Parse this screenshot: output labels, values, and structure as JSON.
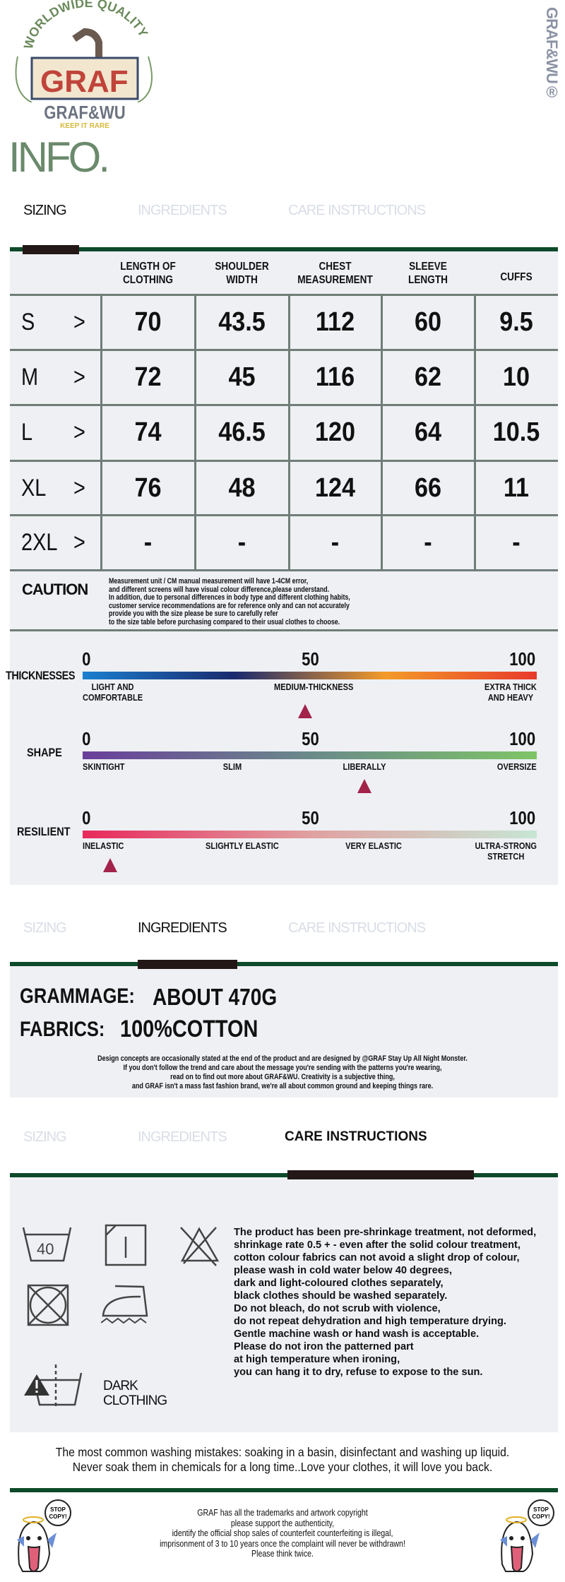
{
  "brand": {
    "logo_arc": "WORLDWIDE QUALITY",
    "logo_box": "GRAF",
    "logo_name": "GRAF&WU",
    "logo_tag": "KEEP IT RARE",
    "side_mark": "GRAF&WU®"
  },
  "page_title": "INFO.",
  "tabs": [
    "SIZING",
    "INGREDIENTS",
    "CARE INSTRUCTIONS"
  ],
  "sizing": {
    "headers": [
      "LENGTH OF\nCLOTHING",
      "SHOULDER\nWIDTH",
      "CHEST\nMEASUREMENT",
      "SLEEVE\nLENGTH",
      "CUFFS"
    ],
    "rows": [
      {
        "size": "S",
        "values": [
          "70",
          "43.5",
          "112",
          "60",
          "9.5"
        ]
      },
      {
        "size": "M",
        "values": [
          "72",
          "45",
          "116",
          "62",
          "10"
        ]
      },
      {
        "size": "L",
        "values": [
          "74",
          "46.5",
          "120",
          "64",
          "10.5"
        ]
      },
      {
        "size": "XL",
        "values": [
          "76",
          "48",
          "124",
          "66",
          "11"
        ]
      },
      {
        "size": "2XL",
        "values": [
          "-",
          "-",
          "-",
          "-",
          "-"
        ]
      }
    ],
    "arrow": ">",
    "caution_title": "CAUTION",
    "caution_lines": [
      "Measurement unit / CM manual measurement will have 1-4CM error,",
      "and different screens will have visual colour difference,please understand.",
      "In addition, due to personal differences in body type and different clothing habits,",
      "customer service recommendations are for reference only and can not accurately",
      "provide you with the size please be sure to carefully refer",
      "to the size table before purchasing compared to their usual clothes to choose."
    ]
  },
  "scales": [
    {
      "name": "THICKNESSES",
      "ticks": [
        "0",
        "50",
        "100"
      ],
      "value": 49,
      "gradient": [
        "#1a7fcf",
        "#1a2a6e",
        "#f39a2a",
        "#e8392b"
      ],
      "labels": [
        "LIGHT AND\nCOMFORTABLE",
        "MEDIUM-THICKNESS",
        "EXTRA THICK\nAND HEAVY"
      ]
    },
    {
      "name": "SHAPE",
      "ticks": [
        "0",
        "50",
        "100"
      ],
      "value": 62,
      "gradient": [
        "#6a3e9a",
        "#6a8a8a",
        "#7ec466"
      ],
      "labels": [
        "SKINTIGHT",
        "SLIM",
        "LIBERALLY",
        "OVERSIZE"
      ]
    },
    {
      "name": "RESILIENT",
      "ticks": [
        "0",
        "50",
        "100"
      ],
      "value": 6,
      "gradient": [
        "#e8285c",
        "#e0a0a0",
        "#c7e6d5"
      ],
      "labels": [
        "INELASTIC",
        "SLIGHTLY ELASTIC",
        "VERY ELASTIC",
        "ULTRA-STRONG\nSTRETCH"
      ]
    }
  ],
  "ingredients": {
    "grammage_label": "GRAMMAGE:",
    "grammage_value": "ABOUT 470G",
    "fabrics_label": "FABRICS:",
    "fabrics_value": "100%COTTON",
    "note_lines": [
      "Design concepts are occasionally stated at the end of the product and are designed by @GRAF Stay Up All Night Monster.",
      "If you don't follow the trend and care about the message you're sending with the patterns you're wearing,",
      "read on to find out more about GRAF&WU. Creativity is a subjective thing,",
      "and GRAF isn't a mass fast fashion brand, we're all about common ground and keeping things rare."
    ]
  },
  "care": {
    "wash_temp": "40",
    "dark_label": "DARK\nCLOTHING",
    "lines": [
      "The product has been pre-shrinkage treatment, not deformed,",
      "shrinkage rate 0.5 + - even after the solid colour treatment,",
      "cotton colour fabrics can not avoid a slight drop of colour,",
      "please wash in cold water below 40 degrees,",
      "dark and light-coloured clothes separately,",
      "black clothes should be washed separately.",
      "Do not bleach, do not scrub with violence,",
      "do not repeat dehydration and high temperature drying.",
      "Gentle machine wash or hand wash is acceptable.",
      "Please do not iron the patterned part",
      "at high temperature when ironing,",
      "you can hang it to dry, refuse to expose to the sun."
    ],
    "mistakes": [
      "The most common washing mistakes: soaking in a basin, disinfectant and washing up liquid.",
      "Never soak them in chemicals for a long time..Love your clothes, it will love you back."
    ]
  },
  "footer": {
    "sticker_text": "STOP\nCOPY!",
    "lines": [
      "GRAF has all the trademarks and artwork copyright",
      "please support the authenticity,",
      "identify the official shop sales of counterfeit counterfeiting is illegal,",
      "imprisonment of 3 to 10 years once the complaint will never be withdrawn!",
      "Please think twice."
    ]
  },
  "colors": {
    "accent_green": "#0d4a2a",
    "tab_bar": "#231815",
    "panel": "#eef0f4",
    "marker": "#a3234b",
    "title_green": "#6b8a6c"
  }
}
